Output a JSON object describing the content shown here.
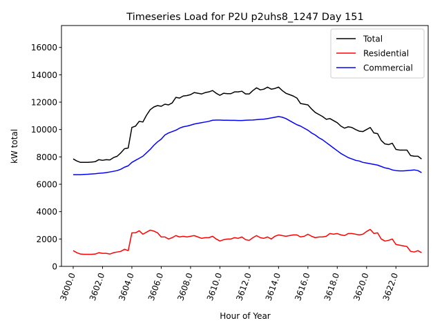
{
  "chart_data": {
    "type": "line",
    "title": "Timeseries Load for P2U p2uhs8_1247  Day 151",
    "xlabel": "Hour of Year",
    "ylabel": "kW total",
    "xlim": [
      3599.2,
      3624.2
    ],
    "ylim": [
      0,
      17600
    ],
    "x_ticks": [
      3600,
      3602,
      3604,
      3606,
      3608,
      3610,
      3612,
      3614,
      3616,
      3618,
      3620,
      3622
    ],
    "x_tick_labels": [
      "3600.0",
      "3602.0",
      "3604.0",
      "3606.0",
      "3608.0",
      "3610.0",
      "3612.0",
      "3614.0",
      "3616.0",
      "3618.0",
      "3620.0",
      "3622.0"
    ],
    "y_ticks": [
      0,
      2000,
      4000,
      6000,
      8000,
      10000,
      12000,
      14000,
      16000
    ],
    "y_tick_labels": [
      "0",
      "2000",
      "4000",
      "6000",
      "8000",
      "10000",
      "12000",
      "14000",
      "16000"
    ],
    "legend_position": "top-right",
    "x_start": 3600,
    "x_step": 0.25,
    "series": [
      {
        "name": "Total",
        "color": "#000000",
        "values": [
          7850,
          7700,
          7600,
          7600,
          7600,
          7620,
          7650,
          7800,
          7750,
          7800,
          7780,
          7950,
          8050,
          8300,
          8600,
          8650,
          10150,
          10250,
          10600,
          10550,
          11050,
          11450,
          11650,
          11750,
          11700,
          11850,
          11800,
          11950,
          12350,
          12300,
          12450,
          12480,
          12550,
          12700,
          12650,
          12600,
          12700,
          12750,
          12850,
          12650,
          12500,
          12650,
          12620,
          12620,
          12750,
          12750,
          12800,
          12600,
          12600,
          12850,
          13050,
          12900,
          12950,
          13100,
          12950,
          13000,
          13100,
          12850,
          12650,
          12550,
          12450,
          12300,
          11900,
          11850,
          11800,
          11500,
          11250,
          11100,
          10950,
          10750,
          10800,
          10650,
          10500,
          10250,
          10100,
          10200,
          10150,
          10000,
          9880,
          9850,
          10000,
          10150,
          9750,
          9700,
          9200,
          8950,
          8900,
          9000,
          8550,
          8500,
          8500,
          8500,
          8100,
          8050,
          8050,
          7850
        ]
      },
      {
        "name": "Residential",
        "color": "#ff0000",
        "values": [
          1150,
          1000,
          900,
          880,
          880,
          880,
          900,
          1000,
          950,
          950,
          900,
          1000,
          1050,
          1100,
          1250,
          1150,
          2450,
          2450,
          2600,
          2350,
          2500,
          2650,
          2580,
          2450,
          2150,
          2150,
          2000,
          2100,
          2250,
          2150,
          2200,
          2150,
          2200,
          2250,
          2150,
          2050,
          2100,
          2100,
          2200,
          2000,
          1850,
          1950,
          2000,
          2000,
          2100,
          2050,
          2150,
          1950,
          1900,
          2100,
          2250,
          2100,
          2050,
          2150,
          2000,
          2200,
          2300,
          2250,
          2200,
          2250,
          2300,
          2300,
          2150,
          2200,
          2350,
          2200,
          2100,
          2150,
          2150,
          2200,
          2400,
          2350,
          2400,
          2300,
          2250,
          2400,
          2400,
          2350,
          2300,
          2350,
          2550,
          2700,
          2400,
          2450,
          2000,
          1850,
          1900,
          2000,
          1600,
          1550,
          1500,
          1450,
          1100,
          1050,
          1150,
          1000
        ]
      },
      {
        "name": "Commercial",
        "color": "#0000ff",
        "values": [
          6700,
          6700,
          6700,
          6720,
          6730,
          6750,
          6770,
          6800,
          6820,
          6850,
          6900,
          6950,
          7000,
          7100,
          7250,
          7350,
          7600,
          7750,
          7900,
          8050,
          8300,
          8550,
          8850,
          9100,
          9300,
          9600,
          9750,
          9850,
          9950,
          10100,
          10200,
          10250,
          10320,
          10400,
          10450,
          10500,
          10550,
          10600,
          10680,
          10690,
          10690,
          10680,
          10680,
          10670,
          10670,
          10660,
          10660,
          10680,
          10690,
          10700,
          10720,
          10740,
          10760,
          10800,
          10850,
          10900,
          10950,
          10900,
          10800,
          10650,
          10500,
          10350,
          10250,
          10100,
          9950,
          9750,
          9600,
          9400,
          9250,
          9050,
          8850,
          8650,
          8450,
          8250,
          8100,
          7950,
          7850,
          7750,
          7700,
          7600,
          7550,
          7500,
          7450,
          7400,
          7300,
          7200,
          7150,
          7050,
          7000,
          6980,
          6980,
          7000,
          7020,
          7050,
          7000,
          6850
        ]
      }
    ]
  }
}
